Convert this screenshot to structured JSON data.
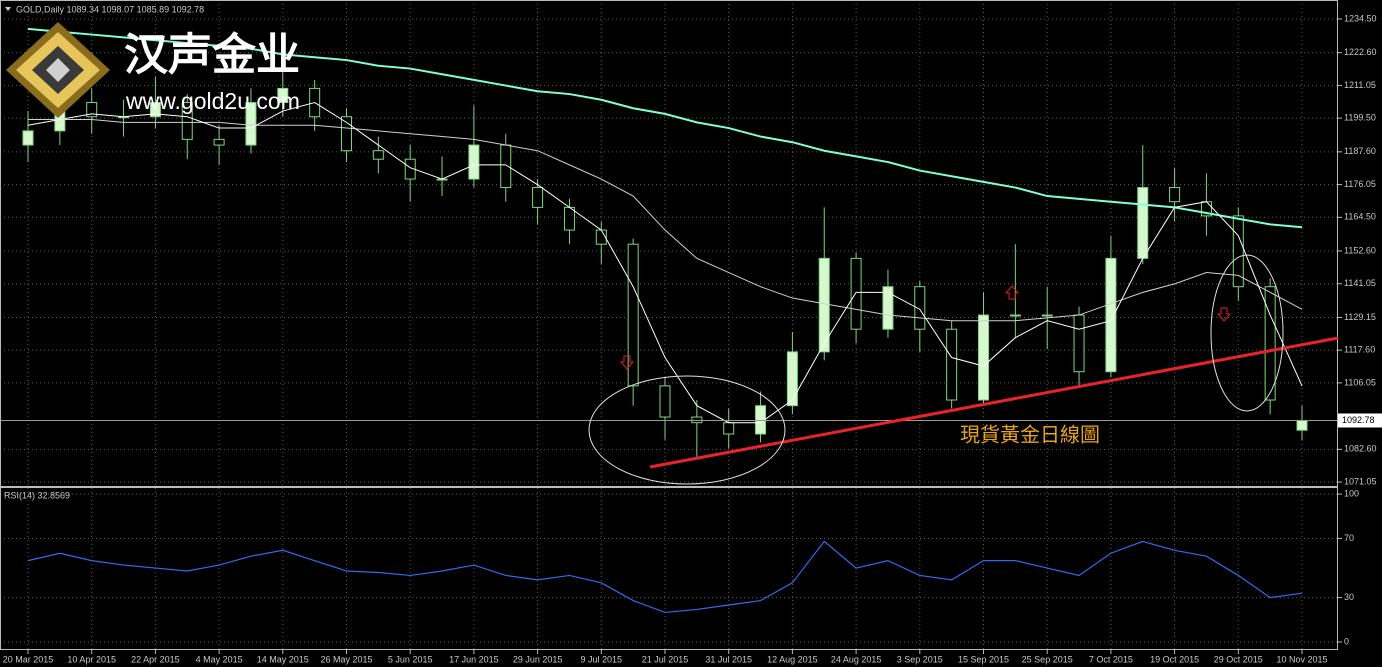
{
  "watermark": {
    "name": "汉声金业",
    "url": "www.gold2u.com"
  },
  "chart_data": [
    {
      "type": "candlestick",
      "title": "GOLD,Daily 1089.34 1098.07 1085.89 1092.78",
      "annotation": "現貨黃金日線圖",
      "categories": [
        "20 Mar 2015",
        null,
        "10 Apr 2015",
        null,
        "22 Apr 2015",
        null,
        "4 May 2015",
        null,
        "14 May 2015",
        null,
        "26 May 2015",
        null,
        "5 Jun 2015",
        null,
        "17 Jun 2015",
        null,
        "29 Jun 2015",
        null,
        "9 Jul 2015",
        null,
        "21 Jul 2015",
        null,
        "31 Jul 2015",
        null,
        "12 Aug 2015",
        null,
        "24 Aug 2015",
        null,
        "3 Sep 2015",
        null,
        "15 Sep 2015",
        null,
        "25 Sep 2015",
        null,
        "7 Oct 2015",
        null,
        "19 Oct 2015",
        null,
        "29 Oct 2015",
        null,
        "10 Nov 2015"
      ],
      "open": [
        1190,
        1195,
        1205,
        1200,
        1200,
        1205,
        1192,
        1190,
        1205,
        1210,
        1200,
        1188,
        1185,
        1178,
        1178,
        1190,
        1175,
        1168,
        1160,
        1155,
        1105,
        1094,
        1092,
        1088,
        1098,
        1117,
        1150,
        1125,
        1140,
        1125,
        1100,
        1130,
        1130,
        1130,
        1110,
        1150,
        1175,
        1170,
        1165,
        1140,
        1089.34
      ],
      "high": [
        1202,
        1212,
        1210,
        1206,
        1214,
        1208,
        1197,
        1210,
        1216,
        1213,
        1203,
        1193,
        1190,
        1186,
        1204,
        1194,
        1178,
        1171,
        1163,
        1157,
        1108,
        1100,
        1097,
        1103,
        1124,
        1168,
        1152,
        1146,
        1142,
        1128,
        1138,
        1155,
        1140,
        1133,
        1158,
        1190,
        1182,
        1180,
        1168,
        1143,
        1098.07
      ],
      "low": [
        1184,
        1190,
        1194,
        1193,
        1196,
        1185,
        1183,
        1187,
        1200,
        1195,
        1184,
        1180,
        1170,
        1172,
        1175,
        1170,
        1162,
        1155,
        1148,
        1098,
        1086,
        1080,
        1083,
        1085,
        1095,
        1114,
        1120,
        1122,
        1117,
        1097,
        1098,
        1122,
        1118,
        1105,
        1108,
        1148,
        1163,
        1158,
        1135,
        1095,
        1085.89
      ],
      "close": [
        1195,
        1205,
        1200,
        1200,
        1205,
        1192,
        1190,
        1205,
        1210,
        1200,
        1188,
        1185,
        1178,
        1178,
        1190,
        1175,
        1168,
        1160,
        1155,
        1105,
        1094,
        1092,
        1088,
        1098,
        1117,
        1150,
        1125,
        1140,
        1125,
        1100,
        1130,
        1130,
        1130,
        1110,
        1150,
        1175,
        1170,
        1165,
        1140,
        1100,
        1092.78
      ],
      "up_color": "#d6f7cf",
      "down_color": "#000000",
      "edge_color": "#7fd67f",
      "overlays": [
        {
          "color": "#7fffd4",
          "values": [
            1231,
            1230,
            1229,
            1228,
            1227,
            1226,
            1225,
            1224,
            1222,
            1221,
            1220,
            1218,
            1217,
            1215,
            1213,
            1211,
            1209,
            1208,
            1206,
            1203,
            1201,
            1198,
            1196,
            1193,
            1191,
            1188,
            1186,
            1184,
            1181,
            1179,
            1177,
            1175,
            1172,
            1171,
            1170,
            1169,
            1168,
            1166,
            1164,
            1162,
            1161
          ]
        },
        {
          "color": "#d0d0d0",
          "values": [
            1199,
            1199,
            1199,
            1198,
            1198,
            1198,
            1198,
            1197,
            1197,
            1197,
            1196,
            1195,
            1194,
            1193,
            1192,
            1190,
            1188,
            1183,
            1178,
            1172,
            1160,
            1150,
            1145,
            1140,
            1136,
            1134,
            1132,
            1130,
            1129,
            1128,
            1128,
            1128,
            1129,
            1130,
            1134,
            1138,
            1141,
            1145,
            1144,
            1138,
            1132
          ]
        },
        {
          "color": "#ffffff",
          "values": [
            1197,
            1199,
            1201,
            1200,
            1201,
            1200,
            1196,
            1196,
            1202,
            1205,
            1198,
            1190,
            1182,
            1178,
            1183,
            1183,
            1176,
            1168,
            1160,
            1140,
            1115,
            1098,
            1092,
            1092,
            1100,
            1120,
            1138,
            1138,
            1132,
            1115,
            1112,
            1122,
            1128,
            1125,
            1128,
            1150,
            1168,
            1170,
            1158,
            1130,
            1105
          ]
        }
      ],
      "current_price": 1092.78,
      "ylim": [
        1069.3,
        1241.2
      ],
      "yticks": [
        {
          "value": 1234.5,
          "label": "1234.50"
        },
        {
          "value": 1222.6,
          "label": "1222.60"
        },
        1211.05,
        {
          "value": 1199.5,
          "label": "1199.50"
        },
        {
          "value": 1187.6,
          "label": "1187.60"
        },
        1176.05,
        {
          "value": 1164.5,
          "label": "1164.50"
        },
        {
          "value": 1152.6,
          "label": "1152.60"
        },
        1141.05,
        1129.15,
        {
          "value": 1117.6,
          "label": "1117.60"
        },
        1106.05,
        {
          "value": 1082.6,
          "label": "1082.60"
        },
        1071.05
      ],
      "grid": true
    },
    {
      "type": "line",
      "title": "RSI(14) 32.8569",
      "color": "#2e6cf0",
      "values": [
        55,
        60,
        55,
        52,
        50,
        48,
        52,
        58,
        62,
        55,
        48,
        47,
        45,
        48,
        52,
        45,
        42,
        45,
        40,
        28,
        20,
        22,
        25,
        28,
        40,
        68,
        50,
        55,
        45,
        42,
        55,
        55,
        50,
        45,
        60,
        68,
        62,
        58,
        45,
        30,
        33
      ],
      "ylim": [
        -5.4,
        104.1
      ],
      "yticks": [
        100,
        70,
        30,
        0
      ],
      "grid": true
    }
  ]
}
